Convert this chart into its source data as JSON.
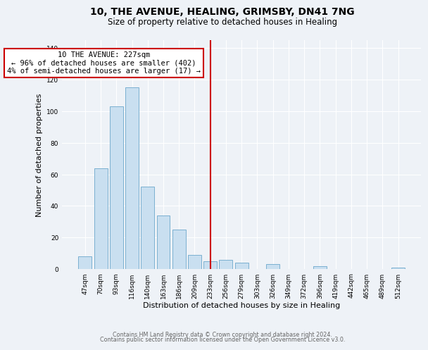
{
  "title": "10, THE AVENUE, HEALING, GRIMSBY, DN41 7NG",
  "subtitle": "Size of property relative to detached houses in Healing",
  "xlabel": "Distribution of detached houses by size in Healing",
  "ylabel": "Number of detached properties",
  "bar_labels": [
    "47sqm",
    "70sqm",
    "93sqm",
    "116sqm",
    "140sqm",
    "163sqm",
    "186sqm",
    "209sqm",
    "233sqm",
    "256sqm",
    "279sqm",
    "303sqm",
    "326sqm",
    "349sqm",
    "372sqm",
    "396sqm",
    "419sqm",
    "442sqm",
    "465sqm",
    "489sqm",
    "512sqm"
  ],
  "bar_values": [
    8,
    64,
    103,
    115,
    52,
    34,
    25,
    9,
    5,
    6,
    4,
    0,
    3,
    0,
    0,
    2,
    0,
    0,
    0,
    0,
    1
  ],
  "bar_color": "#c9dff0",
  "bar_edge_color": "#7ab0d0",
  "vline_x": 8,
  "vline_color": "#cc0000",
  "annotation_title": "10 THE AVENUE: 227sqm",
  "annotation_line1": "← 96% of detached houses are smaller (402)",
  "annotation_line2": "4% of semi-detached houses are larger (17) →",
  "annotation_box_color": "#ffffff",
  "annotation_box_edge": "#cc0000",
  "ylim": [
    0,
    145
  ],
  "yticks": [
    0,
    20,
    40,
    60,
    80,
    100,
    120,
    140
  ],
  "footer1": "Contains HM Land Registry data © Crown copyright and database right 2024.",
  "footer2": "Contains public sector information licensed under the Open Government Licence v3.0.",
  "background_color": "#eef2f7",
  "grid_color": "#ffffff",
  "title_fontsize": 10,
  "subtitle_fontsize": 8.5,
  "ylabel_fontsize": 8,
  "xlabel_fontsize": 8,
  "tick_fontsize": 6.5,
  "annotation_fontsize": 7.5,
  "footer_fontsize": 5.8
}
